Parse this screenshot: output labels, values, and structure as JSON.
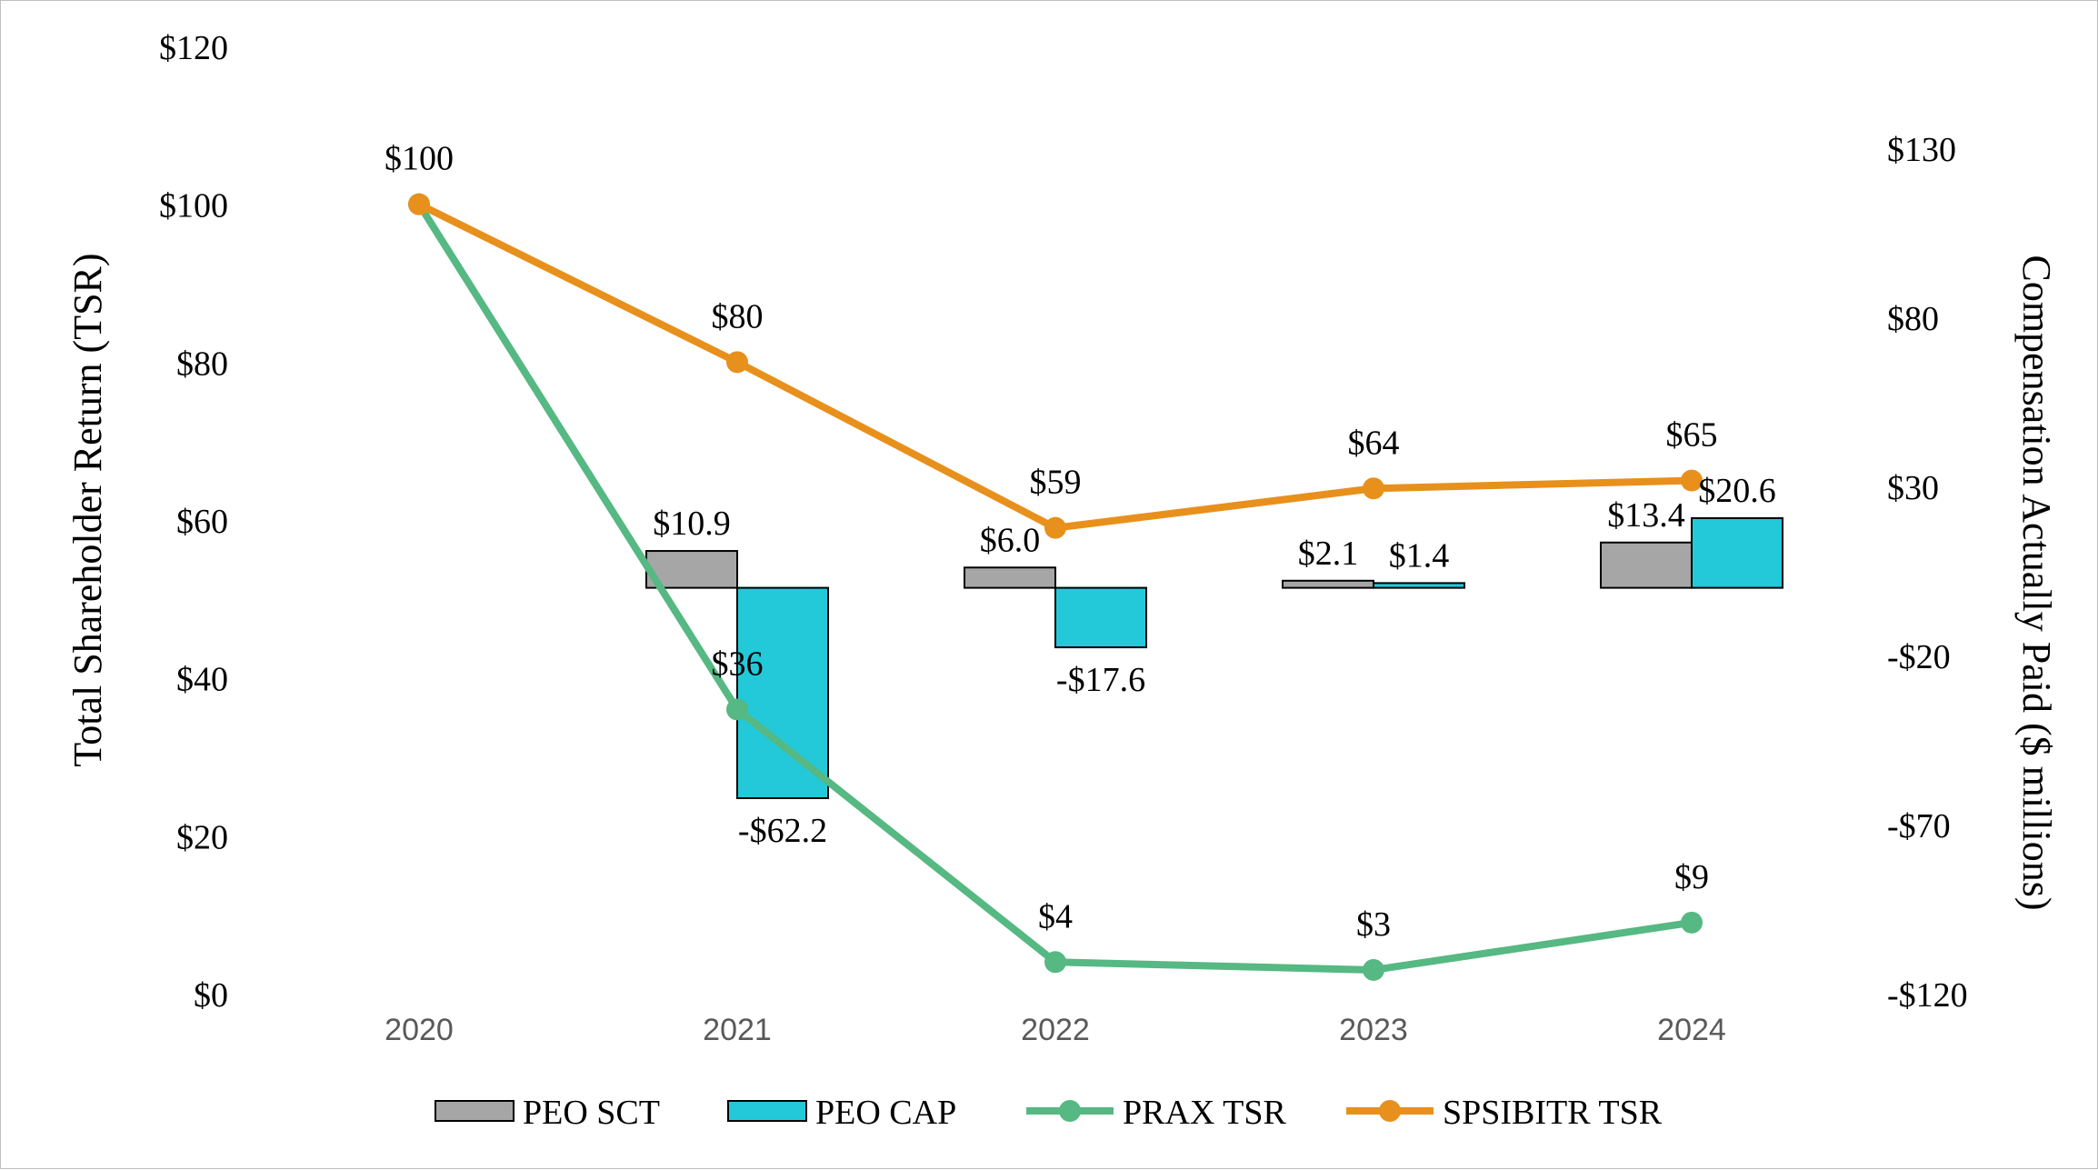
{
  "chart_data": {
    "type": "bar",
    "categories": [
      "2020",
      "2021",
      "2022",
      "2023",
      "2024"
    ],
    "left_axis": {
      "label": "Total Shareholder Return (TSR)",
      "ylim": [
        0,
        120
      ],
      "ticks": [
        0,
        20,
        40,
        60,
        80,
        100,
        120
      ],
      "tick_labels": [
        "$0",
        "$20",
        "$40",
        "$60",
        "$80",
        "$100",
        "$120"
      ]
    },
    "right_axis": {
      "label": "Compensation Actually Paid ($ millions)",
      "ylim": [
        -120,
        130
      ],
      "ticks": [
        -120,
        -70,
        -20,
        30,
        80,
        130
      ],
      "tick_labels": [
        "-$120",
        "-$70",
        "-$20",
        "$30",
        "$80",
        "$130"
      ]
    },
    "series": [
      {
        "name": "PEO SCT",
        "kind": "bar",
        "axis": "right",
        "color": "#a6a6a6",
        "values": [
          null,
          10.9,
          6.0,
          2.1,
          13.4
        ],
        "labels": [
          "",
          "$10.9",
          "$6.0",
          "$2.1",
          "$13.4"
        ]
      },
      {
        "name": "PEO CAP",
        "kind": "bar",
        "axis": "right",
        "color": "#23c9d8",
        "values": [
          null,
          -62.2,
          -17.6,
          1.4,
          20.6
        ],
        "labels": [
          "",
          "-$62.2",
          "-$17.6",
          "$1.4",
          "$20.6"
        ]
      },
      {
        "name": "PRAX TSR",
        "kind": "line",
        "axis": "left",
        "color": "#56b882",
        "values": [
          100,
          36,
          4,
          3,
          9
        ],
        "labels": [
          "",
          "$36",
          "$4",
          "$3",
          "$9"
        ]
      },
      {
        "name": "SPSIBITR TSR",
        "kind": "line",
        "axis": "left",
        "color": "#e8901c",
        "values": [
          100,
          80,
          59,
          64,
          65
        ],
        "labels": [
          "$100",
          "$80",
          "$59",
          "$64",
          "$65"
        ]
      }
    ],
    "legend_position": "bottom",
    "grid": false
  }
}
